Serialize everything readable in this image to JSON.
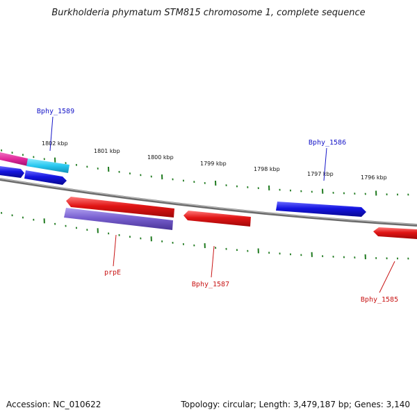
{
  "title": "Burkholderia phymatum STM815 chromosome 1, complete sequence",
  "footer": {
    "accession": "Accession: NC_010622",
    "summary": "Topology: circular; Length: 3,479,187 bp; Genes: 3,140"
  },
  "ruler": {
    "labels": [
      "1802 kbp",
      "1801 kbp",
      "1800 kbp",
      "1799 kbp",
      "1798 kbp",
      "1797 kbp",
      "1796 kbp"
    ]
  },
  "genes": [
    {
      "id": "forward-gene-1",
      "strand": "forward",
      "color": "#e0289a",
      "label": ""
    },
    {
      "id": "forward-gene-2",
      "strand": "forward",
      "color": "#28c8f0",
      "label": ""
    },
    {
      "id": "forward-gene-3",
      "strand": "forward",
      "color": "#1414e0",
      "label": ""
    },
    {
      "id": "forward-gene-4",
      "strand": "forward",
      "color": "#1414e0",
      "label": "Bphy_1589"
    },
    {
      "id": "forward-gene-5",
      "strand": "forward",
      "color": "#1414e0",
      "label": "Bphy_1586"
    },
    {
      "id": "reverse-gene-1",
      "strand": "reverse",
      "color": "#e01414",
      "label": ""
    },
    {
      "id": "reverse-gene-2",
      "strand": "reverse",
      "color": "#7860d0",
      "label": "prpE"
    },
    {
      "id": "reverse-gene-3",
      "strand": "reverse",
      "color": "#e01414",
      "label": "Bphy_1587"
    },
    {
      "id": "reverse-gene-4",
      "strand": "reverse",
      "color": "#e01414",
      "label": "Bphy_1585"
    }
  ],
  "colors": {
    "backbone": "#7a7a7a",
    "tick": "#1f7a1f",
    "forward_label": "#1414c8",
    "reverse_label": "#c81414"
  }
}
